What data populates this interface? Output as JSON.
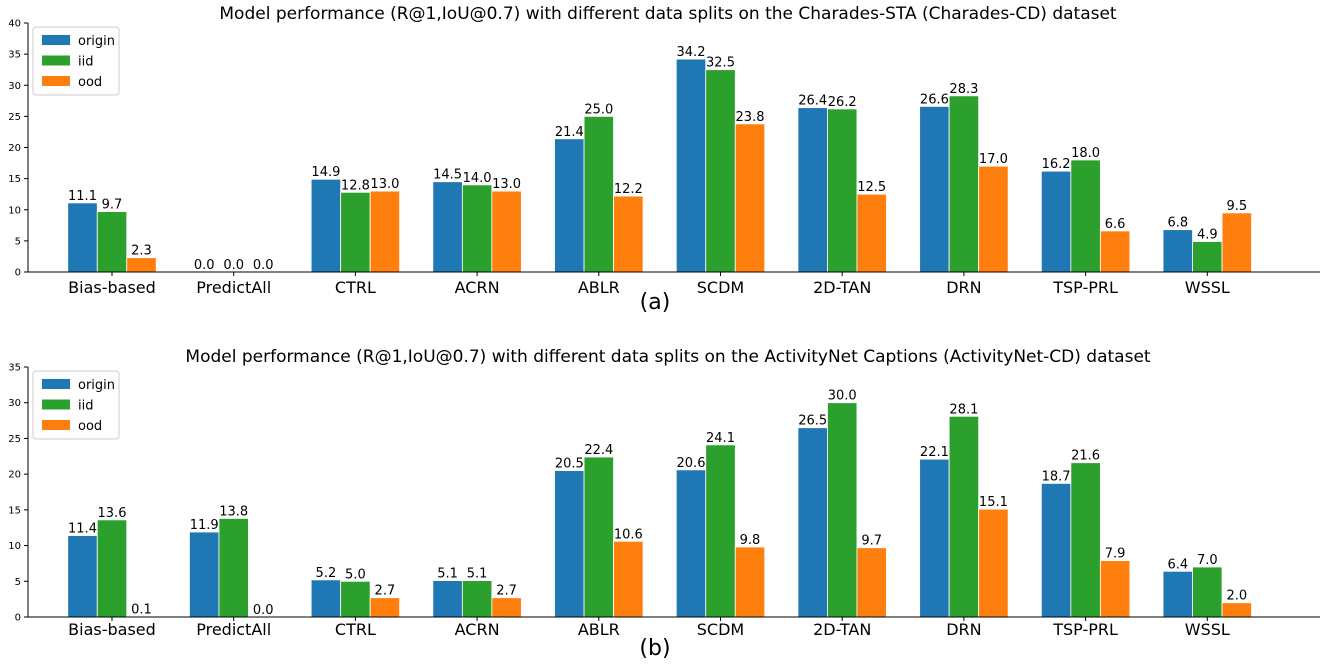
{
  "chart_data": [
    {
      "type": "bar",
      "title": "Model performance (R@1,IoU@0.7) with different data splits on the Charades-STA (Charades-CD) dataset",
      "subtitle": "(a)",
      "xlabel": "",
      "ylabel": "",
      "ylim": [
        0,
        40
      ],
      "yticks": [
        0,
        5,
        10,
        15,
        20,
        25,
        30,
        35,
        40
      ],
      "grid": false,
      "legend": "top-left",
      "categories": [
        "Bias-based",
        "PredictAll",
        "CTRL",
        "ACRN",
        "ABLR",
        "SCDM",
        "2D-TAN",
        "DRN",
        "TSP-PRL",
        "WSSL"
      ],
      "series": [
        {
          "name": "origin",
          "color": "#1f77b4",
          "values": [
            11.1,
            0.0,
            14.9,
            14.5,
            21.4,
            34.2,
            26.4,
            26.6,
            16.2,
            6.8
          ]
        },
        {
          "name": "iid",
          "color": "#2ca02c",
          "values": [
            9.7,
            0.0,
            12.8,
            14.0,
            25.0,
            32.5,
            26.2,
            28.3,
            18.0,
            4.9
          ]
        },
        {
          "name": "ood",
          "color": "#ff7f0e",
          "values": [
            2.3,
            0.0,
            13.0,
            13.0,
            12.2,
            23.8,
            12.5,
            17.0,
            6.6,
            9.5
          ]
        }
      ]
    },
    {
      "type": "bar",
      "title": "Model performance (R@1,IoU@0.7) with different data splits on the ActivityNet Captions (ActivityNet-CD) dataset",
      "subtitle": "(b)",
      "xlabel": "",
      "ylabel": "",
      "ylim": [
        0,
        35
      ],
      "yticks": [
        0,
        5,
        10,
        15,
        20,
        25,
        30,
        35
      ],
      "grid": false,
      "legend": "top-left",
      "categories": [
        "Bias-based",
        "PredictAll",
        "CTRL",
        "ACRN",
        "ABLR",
        "SCDM",
        "2D-TAN",
        "DRN",
        "TSP-PRL",
        "WSSL"
      ],
      "series": [
        {
          "name": "origin",
          "color": "#1f77b4",
          "values": [
            11.4,
            11.9,
            5.2,
            5.1,
            20.5,
            20.6,
            26.5,
            22.1,
            18.7,
            6.4
          ]
        },
        {
          "name": "iid",
          "color": "#2ca02c",
          "values": [
            13.6,
            13.8,
            5.0,
            5.1,
            22.4,
            24.1,
            30.0,
            28.1,
            21.6,
            7.0
          ]
        },
        {
          "name": "ood",
          "color": "#ff7f0e",
          "values": [
            0.1,
            0.0,
            2.7,
            2.7,
            10.6,
            9.8,
            9.7,
            15.1,
            7.9,
            2.0
          ]
        }
      ]
    }
  ]
}
